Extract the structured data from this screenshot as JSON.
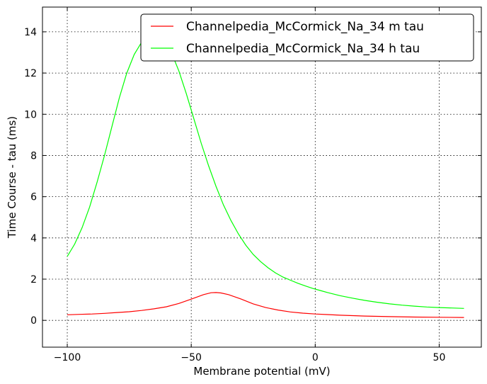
{
  "chart_data": {
    "type": "line",
    "title": "",
    "xlabel": "Membrane potential (mV)",
    "ylabel": "Time Course - tau (ms)",
    "xlim": [
      -110,
      67
    ],
    "ylim": [
      -1.3,
      15.2
    ],
    "xticks": [
      -100,
      -50,
      0,
      50
    ],
    "xtick_labels": [
      "−100",
      "−50",
      "0",
      "50"
    ],
    "yticks": [
      0,
      2,
      4,
      6,
      8,
      10,
      12,
      14
    ],
    "ytick_labels": [
      "0",
      "2",
      "4",
      "6",
      "8",
      "10",
      "12",
      "14"
    ],
    "grid": true,
    "legend_position": "top-right",
    "series": [
      {
        "name": "Channelpedia_McCormick_Na_34 m tau",
        "color": "#ff0000",
        "x": [
          -100,
          -95,
          -90,
          -85,
          -80,
          -75,
          -70,
          -65,
          -60,
          -55,
          -50,
          -45,
          -42,
          -40,
          -38,
          -35,
          -30,
          -25,
          -20,
          -15,
          -10,
          -5,
          0,
          5,
          10,
          20,
          30,
          40,
          50,
          60
        ],
        "y": [
          0.27,
          0.29,
          0.31,
          0.34,
          0.38,
          0.42,
          0.48,
          0.56,
          0.66,
          0.82,
          1.03,
          1.25,
          1.34,
          1.35,
          1.33,
          1.25,
          1.04,
          0.8,
          0.62,
          0.5,
          0.41,
          0.35,
          0.31,
          0.28,
          0.25,
          0.21,
          0.18,
          0.16,
          0.15,
          0.14
        ]
      },
      {
        "name": "Channelpedia_McCormick_Na_34 h tau",
        "color": "#00ff00",
        "x": [
          -100,
          -97,
          -94,
          -91,
          -88,
          -85,
          -82,
          -79,
          -76,
          -73,
          -70,
          -67,
          -65,
          -63,
          -61,
          -58,
          -55,
          -52,
          -49,
          -46,
          -43,
          -40,
          -37,
          -34,
          -31,
          -28,
          -25,
          -22,
          -19,
          -16,
          -13,
          -10,
          -7,
          -4,
          -1,
          2,
          5,
          10,
          15,
          20,
          25,
          30,
          35,
          40,
          45,
          50,
          55,
          60
        ],
        "y": [
          3.1,
          3.7,
          4.5,
          5.5,
          6.7,
          8.0,
          9.4,
          10.8,
          12.0,
          12.9,
          13.5,
          13.85,
          13.9,
          13.85,
          13.6,
          13.0,
          12.1,
          11.0,
          9.8,
          8.6,
          7.5,
          6.5,
          5.6,
          4.85,
          4.2,
          3.65,
          3.2,
          2.85,
          2.55,
          2.3,
          2.1,
          1.95,
          1.8,
          1.67,
          1.55,
          1.45,
          1.35,
          1.2,
          1.08,
          0.97,
          0.88,
          0.8,
          0.74,
          0.69,
          0.65,
          0.62,
          0.6,
          0.58
        ]
      }
    ]
  }
}
